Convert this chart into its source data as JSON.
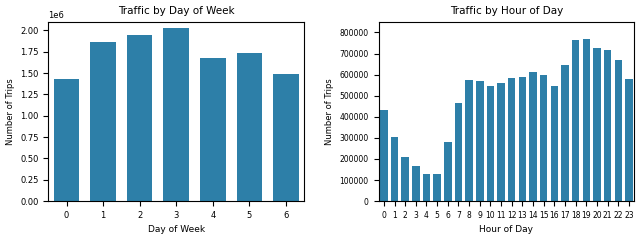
{
  "chart1": {
    "title": "Traffic by Day of Week",
    "xlabel": "Day of Week",
    "ylabel": "Number of Trips",
    "days": [
      0,
      1,
      2,
      3,
      4,
      5,
      6
    ],
    "values": [
      1430000,
      1860000,
      1950000,
      2030000,
      1680000,
      1730000,
      1490000
    ],
    "bar_color": "#2d7fa8",
    "ylim": [
      0,
      2100000
    ]
  },
  "chart2": {
    "title": "Traffic by Hour of Day",
    "xlabel": "Hour of Day",
    "ylabel": "Number of Trips",
    "hours": [
      0,
      1,
      2,
      3,
      4,
      5,
      6,
      7,
      8,
      9,
      10,
      11,
      12,
      13,
      14,
      15,
      16,
      17,
      18,
      19,
      20,
      21,
      22,
      23
    ],
    "values": [
      430000,
      305000,
      208000,
      168000,
      130000,
      128000,
      280000,
      465000,
      573000,
      570000,
      547000,
      560000,
      585000,
      590000,
      613000,
      598000,
      545000,
      645000,
      762000,
      768000,
      726000,
      716000,
      667000,
      578000
    ],
    "bar_color": "#2d7fa8",
    "ylim": [
      0,
      850000
    ]
  }
}
